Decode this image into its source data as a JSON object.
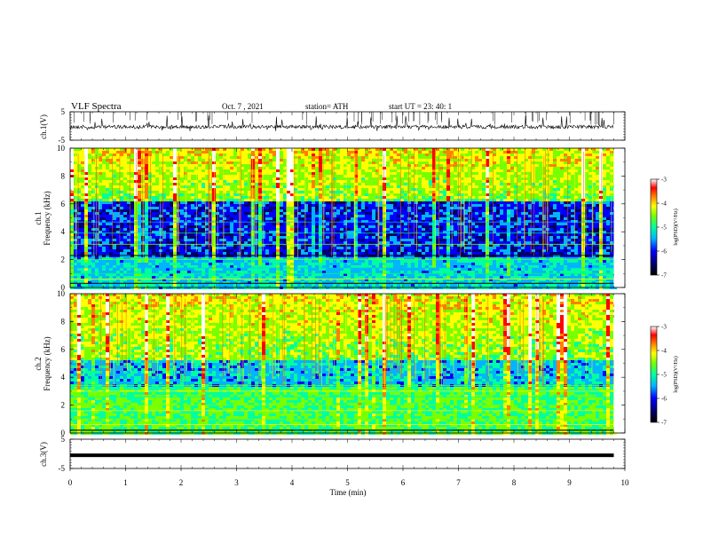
{
  "header": {
    "title": "VLF  Spectra",
    "date": "Oct. 7  , 2021",
    "station": "station= ATH",
    "start_ut": "start  UT  =    23: 40: 1"
  },
  "chart_data": [
    {
      "type": "line",
      "name": "ch1-waveform",
      "ylabel": "ch.1(V)",
      "ylim": [
        -5,
        5
      ],
      "yticks": [
        "5",
        "-5"
      ],
      "x_range_min": [
        0,
        9.8
      ]
    },
    {
      "type": "heatmap",
      "name": "ch1-spectrogram",
      "ylabel_channel": "ch.1",
      "ylabel": "Frequency  (kHz)",
      "ylim": [
        0,
        10
      ],
      "yticks": [
        "0",
        "2",
        "4",
        "6",
        "8",
        "10"
      ],
      "colorbar": {
        "label": "log(PSD)(V²/Hz)",
        "range": [
          -7,
          -3
        ],
        "ticks": [
          "-3",
          "-4",
          "-5",
          "-6",
          "-7"
        ]
      },
      "description_values": {
        "quiet_band_khz": [
          2.3,
          6.3
        ],
        "noisy_band_khz": [
          6.3,
          10
        ],
        "low_band_khz": [
          0,
          2.3
        ]
      }
    },
    {
      "type": "heatmap",
      "name": "ch2-spectrogram",
      "ylabel_channel": "ch.2",
      "ylabel": "Frequency  (kHz)",
      "ylim": [
        0,
        10
      ],
      "yticks": [
        "0",
        "2",
        "4",
        "6",
        "8",
        "10"
      ],
      "colorbar": {
        "label": "log(PSD)(V²/Hz)",
        "range": [
          -7,
          -3
        ],
        "ticks": [
          "-3",
          "-4",
          "-5",
          "-6",
          "-7"
        ]
      },
      "description_values": {
        "quiet_band_khz": [
          3.5,
          5.3
        ],
        "noisy_band_khz": [
          5.3,
          10
        ],
        "low_band_khz": [
          0,
          3.5
        ]
      }
    },
    {
      "type": "line",
      "name": "ch3-waveform",
      "ylabel": "ch.3(V)",
      "ylim": [
        -5,
        5
      ],
      "yticks": [
        "5",
        "-5"
      ],
      "constant_value": -0.5
    }
  ],
  "xaxis": {
    "label": "Time  (min)",
    "ticks": [
      "0",
      "1",
      "2",
      "3",
      "4",
      "5",
      "6",
      "7",
      "8",
      "9",
      "10"
    ],
    "range": [
      0,
      10
    ],
    "data_end": 9.8
  },
  "colors": {
    "colormap": [
      "#000000",
      "#00006e",
      "#0000ff",
      "#00b4ff",
      "#00ffa0",
      "#78ff00",
      "#ffff00",
      "#ff8000",
      "#ff0000",
      "#ffffff"
    ]
  }
}
